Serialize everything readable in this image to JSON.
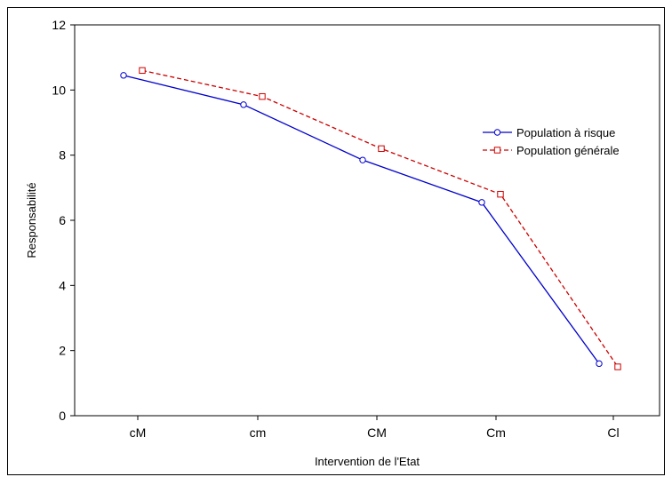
{
  "chart_data": {
    "type": "line",
    "categories": [
      "cM",
      "cm",
      "CM",
      "Cm",
      "Cl"
    ],
    "xlabel": "Intervention de l'Etat",
    "ylabel": "Responsabilité",
    "ylim": [
      0,
      12
    ],
    "yticks": [
      0,
      2,
      4,
      6,
      8,
      10,
      12
    ],
    "grid": false,
    "legend_position": "right",
    "series": [
      {
        "name": "Population à risque",
        "values": [
          10.45,
          9.55,
          7.85,
          6.55,
          1.6
        ],
        "color": "#0000cc",
        "line_style": "solid",
        "marker": "circle"
      },
      {
        "name": "Population générale",
        "values": [
          10.6,
          9.8,
          8.2,
          6.8,
          1.5
        ],
        "color": "#cc0000",
        "line_style": "dashed",
        "marker": "square"
      }
    ]
  }
}
